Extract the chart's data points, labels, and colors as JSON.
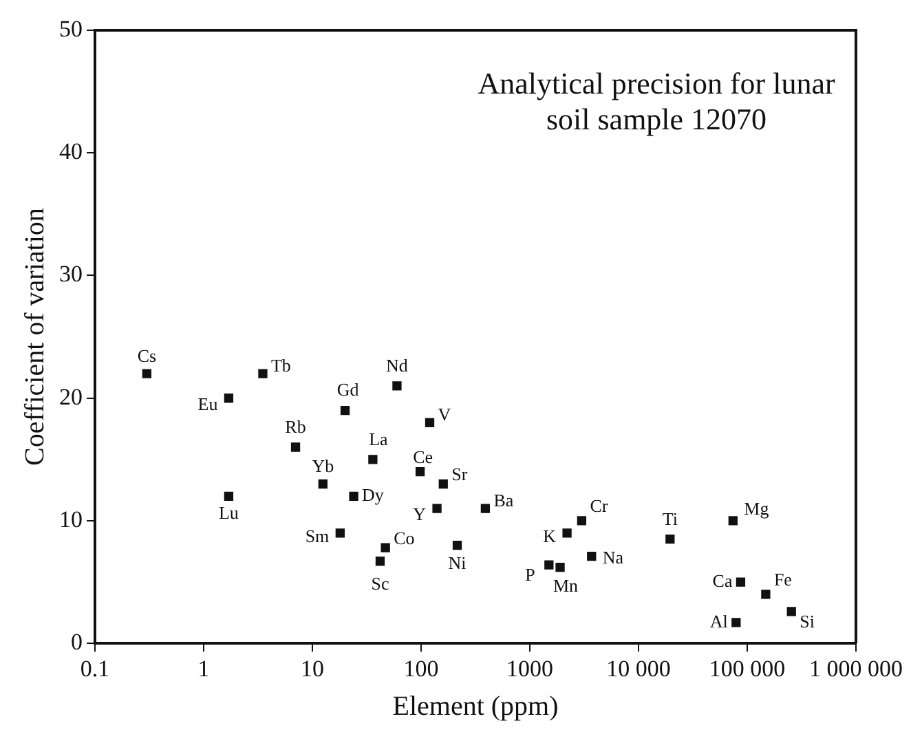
{
  "chart_data": {
    "type": "scatter",
    "title": "Analytical precision for lunar soil sample 12070",
    "xlabel": "Element (ppm)",
    "ylabel": "Coefficient of variation",
    "log": "x",
    "grid": false,
    "legend": false,
    "marker": "square",
    "xlim": [
      0.1,
      1000000
    ],
    "xticks": [
      0.1,
      1,
      10,
      100,
      1000,
      {
        "value": 10000,
        "label": "10 000"
      },
      {
        "value": 100000,
        "label": "100 000"
      },
      {
        "value": 1000000,
        "label": "1 000 000"
      }
    ],
    "ylim": [
      0,
      50
    ],
    "yticks": [
      0,
      10,
      20,
      30,
      40,
      50
    ],
    "series": [
      {
        "color": "#111111",
        "x": [
          0.3,
          1.7,
          3.5,
          1.7,
          7,
          12.5,
          20,
          18,
          24,
          36,
          42,
          47,
          60,
          98,
          120,
          140,
          160,
          215,
          390,
          2200,
          3000,
          1500,
          1900,
          3700,
          19500,
          74000,
          87000,
          79000,
          148000,
          255000
        ],
        "values": [
          22,
          20,
          22,
          12,
          16,
          13,
          19,
          9,
          12,
          15,
          6.7,
          7.8,
          21,
          14,
          18,
          11,
          13,
          8,
          11,
          9,
          10,
          6.4,
          6.2,
          7.1,
          8.5,
          10,
          5,
          1.7,
          4,
          2.6
        ]
      }
    ],
    "annotations": [
      {
        "text": "Cs",
        "x": 0.3,
        "y": 22
      },
      {
        "text": "Eu",
        "x": 1.7,
        "y": 20
      },
      {
        "text": "Tb",
        "x": 3.5,
        "y": 22
      },
      {
        "text": "Lu",
        "x": 1.7,
        "y": 12
      },
      {
        "text": "Rb",
        "x": 7,
        "y": 16
      },
      {
        "text": "Yb",
        "x": 12.5,
        "y": 13
      },
      {
        "text": "Gd",
        "x": 20,
        "y": 19
      },
      {
        "text": "Sm",
        "x": 18,
        "y": 9
      },
      {
        "text": "Dy",
        "x": 24,
        "y": 12
      },
      {
        "text": "La",
        "x": 36,
        "y": 15
      },
      {
        "text": "Sc",
        "x": 42,
        "y": 6.7
      },
      {
        "text": "Co",
        "x": 47,
        "y": 7.8
      },
      {
        "text": "Nd",
        "x": 60,
        "y": 21
      },
      {
        "text": "Ce",
        "x": 98,
        "y": 14
      },
      {
        "text": "V",
        "x": 120,
        "y": 18
      },
      {
        "text": "Y",
        "x": 140,
        "y": 11
      },
      {
        "text": "Sr",
        "x": 160,
        "y": 13
      },
      {
        "text": "Ni",
        "x": 215,
        "y": 8
      },
      {
        "text": "Ba",
        "x": 390,
        "y": 11
      },
      {
        "text": "K",
        "x": 2200,
        "y": 9
      },
      {
        "text": "Cr",
        "x": 3000,
        "y": 10
      },
      {
        "text": "P",
        "x": 1500,
        "y": 6.4
      },
      {
        "text": "Mn",
        "x": 1900,
        "y": 6.2
      },
      {
        "text": "Na",
        "x": 3700,
        "y": 7.1
      },
      {
        "text": "Ti",
        "x": 19500,
        "y": 8.5
      },
      {
        "text": "Mg",
        "x": 74000,
        "y": 10
      },
      {
        "text": "Ca",
        "x": 87000,
        "y": 5
      },
      {
        "text": "Al",
        "x": 79000,
        "y": 1.7
      },
      {
        "text": "Fe",
        "x": 148000,
        "y": 4
      },
      {
        "text": "Si",
        "x": 255000,
        "y": 2.6
      }
    ]
  }
}
